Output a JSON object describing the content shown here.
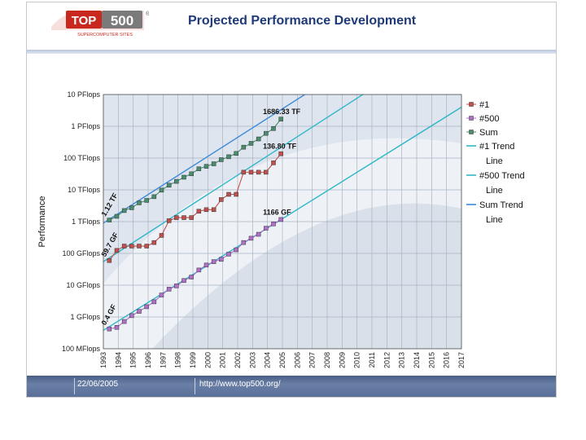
{
  "header": {
    "title": "Projected Performance Development",
    "logo": {
      "text": "TOP500",
      "subtext": "SUPERCOMPUTER SITES",
      "mark": "®"
    }
  },
  "footer": {
    "date": "22/06/2005",
    "url": "http://www.top500.org/"
  },
  "colors": {
    "header_title": "#1f3a78",
    "logo_red": "#c8281e",
    "n1": "#c0504d",
    "n500": "#b070c8",
    "sum": "#4a8c6e",
    "n1_trend": "#2fb7c8",
    "n500_trend": "#2fb7c8",
    "sum_trend": "#3a8ad8"
  },
  "chart_data": {
    "type": "line",
    "title": "",
    "ylabel": "Performance",
    "xlabel": "",
    "y_scale": "log10",
    "ylim_gflops": [
      0.1,
      10000000
    ],
    "yticks": [
      {
        "label": "100 MFlops",
        "value": 0.1
      },
      {
        "label": "1 GFlops",
        "value": 1
      },
      {
        "label": "10 GFlops",
        "value": 10
      },
      {
        "label": "100 GFlops",
        "value": 100
      },
      {
        "label": "1 TFlops",
        "value": 1000
      },
      {
        "label": "10 TFlops",
        "value": 10000
      },
      {
        "label": "100 TFlops",
        "value": 100000
      },
      {
        "label": "1 PFlops",
        "value": 1000000
      },
      {
        "label": "10 PFlops",
        "value": 10000000
      }
    ],
    "xticks": [
      "1993",
      "1994",
      "1995",
      "1996",
      "1997",
      "1998",
      "1999",
      "2000",
      "2001",
      "2002",
      "2003",
      "2004",
      "2005",
      "2006",
      "2007",
      "2008",
      "2009",
      "2010",
      "2011",
      "2012",
      "2013",
      "2014",
      "2015",
      "2016",
      "2017"
    ],
    "xlim": [
      1993,
      2017
    ],
    "grid": true,
    "legend": {
      "position": "right",
      "items": [
        "#1",
        "#500",
        "Sum",
        "#1 Trend Line",
        "#500 Trend Line",
        "Sum Trend Line"
      ]
    },
    "series": [
      {
        "name": "#1",
        "marker": "square",
        "x": [
          1993.4,
          1993.9,
          1994.4,
          1994.9,
          1995.4,
          1995.9,
          1996.4,
          1996.9,
          1997.4,
          1997.9,
          1998.4,
          1998.9,
          1999.4,
          1999.9,
          2000.4,
          2000.9,
          2001.4,
          2001.9,
          2002.4,
          2002.9,
          2003.4,
          2003.9,
          2004.4,
          2004.9
        ],
        "y": [
          59.7,
          124,
          170,
          170,
          170,
          170,
          220,
          368,
          1068,
          1338,
          1338,
          1338,
          2121,
          2379,
          2379,
          4938,
          7226,
          7226,
          35860,
          35860,
          35860,
          35860,
          70720,
          136800
        ]
      },
      {
        "name": "#500",
        "marker": "square",
        "x": [
          1993.4,
          1993.9,
          1994.4,
          1994.9,
          1995.4,
          1995.9,
          1996.4,
          1996.9,
          1997.4,
          1997.9,
          1998.4,
          1998.9,
          1999.4,
          1999.9,
          2000.4,
          2000.9,
          2001.4,
          2001.9,
          2002.4,
          2002.9,
          2003.4,
          2003.9,
          2004.4,
          2004.9
        ],
        "y": [
          0.42,
          0.47,
          0.72,
          1.1,
          1.5,
          2.1,
          3.0,
          4.9,
          7.5,
          9.5,
          14,
          18,
          30,
          43,
          55,
          65,
          95,
          130,
          220,
          300,
          400,
          620,
          850,
          1166
        ]
      },
      {
        "name": "Sum",
        "marker": "square",
        "x": [
          1993.4,
          1993.9,
          1994.4,
          1994.9,
          1995.4,
          1995.9,
          1996.4,
          1996.9,
          1997.4,
          1997.9,
          1998.4,
          1998.9,
          1999.4,
          1999.9,
          2000.4,
          2000.9,
          2001.4,
          2001.9,
          2002.4,
          2002.9,
          2003.4,
          2003.9,
          2004.4,
          2004.9
        ],
        "y": [
          1120,
          1470,
          2230,
          2730,
          3900,
          4650,
          6100,
          9800,
          14000,
          18500,
          25000,
          32000,
          46000,
          55000,
          66000,
          89000,
          110000,
          140000,
          220000,
          290000,
          400000,
          600000,
          850000,
          1686000
        ]
      },
      {
        "name": "#1 Trend Line",
        "marker": "none",
        "x": [
          1993,
          2017
        ],
        "y": [
          55,
          1000000000
        ]
      },
      {
        "name": "#500 Trend Line",
        "marker": "none",
        "x": [
          1993,
          2017
        ],
        "y": [
          0.38,
          4000000
        ]
      },
      {
        "name": "Sum Trend Line",
        "marker": "none",
        "x": [
          1993,
          2017
        ],
        "y": [
          900,
          14000000000
        ]
      }
    ],
    "annotations": [
      {
        "text": "1686.33 TF",
        "x": 2004.9,
        "y": 1686000
      },
      {
        "text": "136.80 TF",
        "x": 2004.9,
        "y": 136800
      },
      {
        "text": "1166 GF",
        "x": 2004.9,
        "y": 1166
      },
      {
        "text": "1.12 TF",
        "x": 1993.4,
        "y": 1120,
        "rotate": -60
      },
      {
        "text": "59.7 GF",
        "x": 1993.4,
        "y": 59.7,
        "rotate": -60
      },
      {
        "text": "0.4 GF",
        "x": 1993.4,
        "y": 0.42,
        "rotate": -60
      }
    ]
  }
}
